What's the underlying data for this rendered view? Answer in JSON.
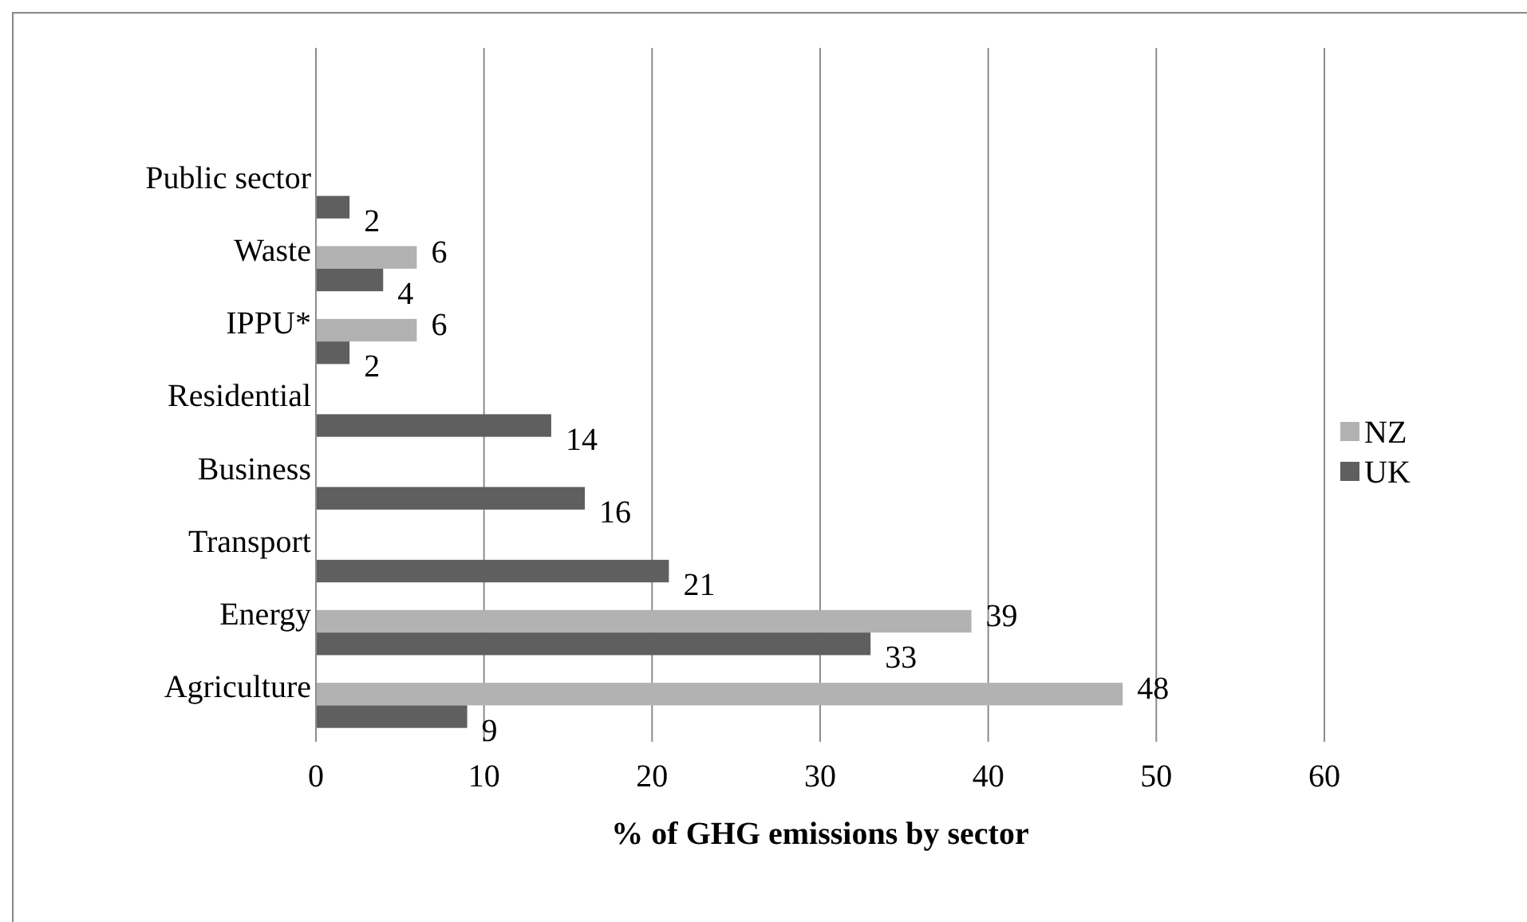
{
  "chart_data": {
    "type": "bar",
    "orientation": "horizontal",
    "xlabel": "% of GHG emissions by sector",
    "categories": [
      "Public sector",
      "Waste",
      "IPPU*",
      "Residential",
      "Business",
      "Transport",
      "Energy",
      "Agriculture"
    ],
    "series": [
      {
        "name": "NZ",
        "color": "#b2b2b2",
        "values": [
          null,
          6,
          6,
          null,
          null,
          null,
          39,
          48
        ]
      },
      {
        "name": "UK",
        "color": "#5f5f5f",
        "values": [
          2,
          4,
          2,
          14,
          16,
          21,
          33,
          9
        ]
      }
    ],
    "xlim": [
      0,
      60
    ],
    "xticks": [
      0,
      10,
      20,
      30,
      40,
      50,
      60
    ],
    "grid": "x",
    "legend": "right",
    "data_labels": true
  }
}
